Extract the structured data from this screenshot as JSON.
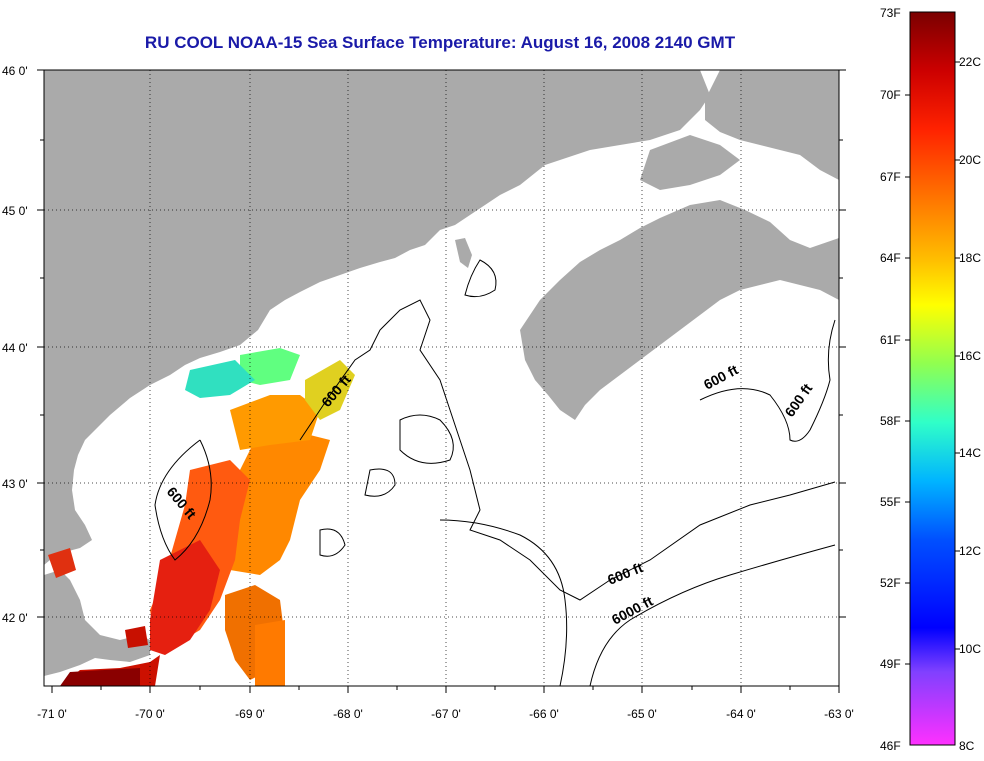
{
  "title": "RU COOL  NOAA-15  Sea Surface Temperature:  August 16, 2008 2140 GMT",
  "map": {
    "lon_range": [
      -71,
      -63
    ],
    "lat_range": [
      41.5,
      46
    ],
    "lat_ticks": [
      "46 0'",
      "45 0'",
      "44 0'",
      "43 0'",
      "42 0'"
    ],
    "lon_ticks": [
      "-71 0'",
      "-70 0'",
      "-69 0'",
      "-68 0'",
      "-67 0'",
      "-66 0'",
      "-65 0'",
      "-64 0'",
      "-63 0'"
    ],
    "land_color": "#aaaaaa",
    "ocean_color": "#ffffff",
    "grid": "dotted",
    "contour_labels": [
      "600 ft",
      "600 ft",
      "600 ft",
      "600 ft",
      "600 ft",
      "6000 ft"
    ]
  },
  "colorbar": {
    "fahrenheit_labels": [
      "73F",
      "70F",
      "67F",
      "64F",
      "61F",
      "58F",
      "55F",
      "52F",
      "49F",
      "46F"
    ],
    "celsius_labels": [
      "22C",
      "20C",
      "18C",
      "16C",
      "14C",
      "12C",
      "10C",
      "8C"
    ],
    "colors": [
      "#7a0000",
      "#cc0000",
      "#ff2a00",
      "#ff7800",
      "#ffc800",
      "#ffff00",
      "#a0ff40",
      "#30ffc0",
      "#00c8ff",
      "#0060ff",
      "#0000ff",
      "#8040ff",
      "#c040e0",
      "#ff40ff"
    ]
  }
}
